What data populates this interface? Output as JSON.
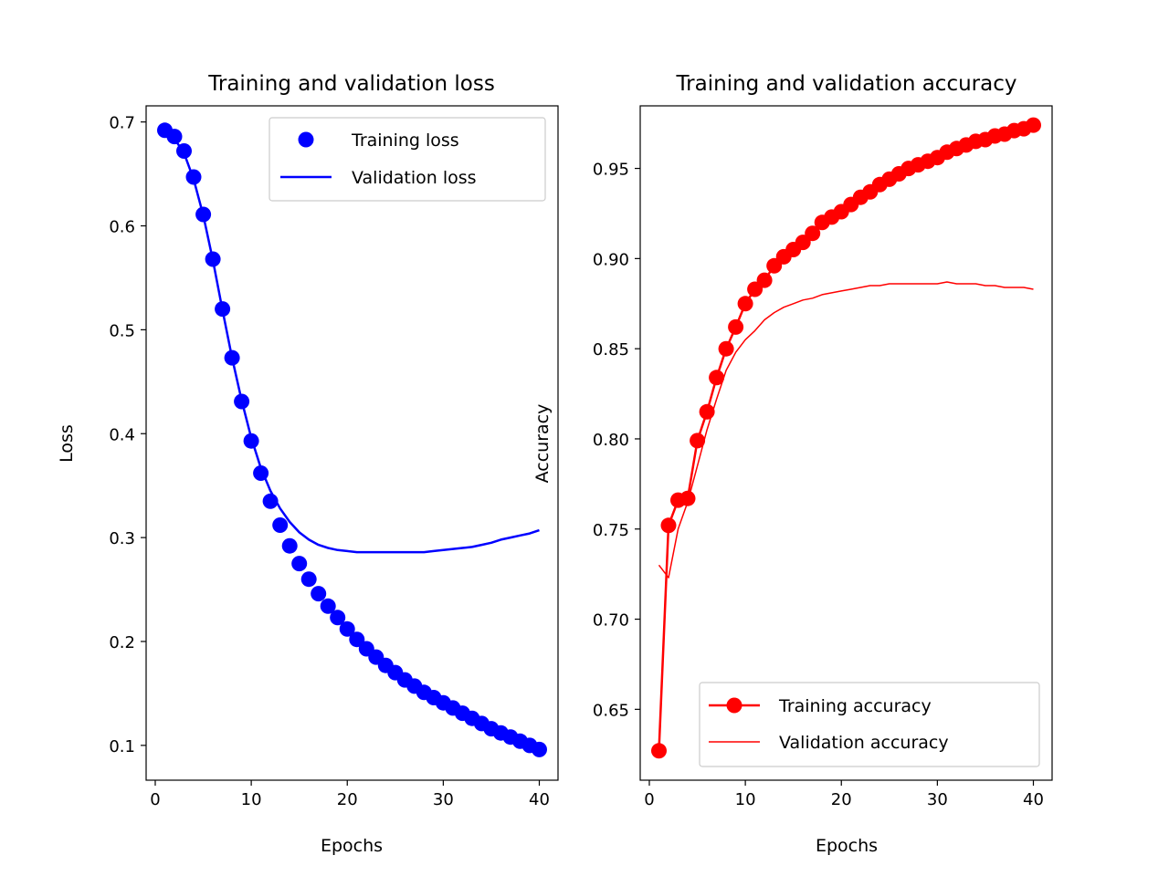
{
  "chart_data": [
    {
      "type": "line",
      "title": "Training and validation loss",
      "xlabel": "Epochs",
      "ylabel": "Loss",
      "xlim": [
        -0.95,
        41.95
      ],
      "ylim": [
        0.0665,
        0.7155
      ],
      "xticks": [
        0,
        10,
        20,
        30,
        40
      ],
      "yticks": [
        0.1,
        0.2,
        0.3,
        0.4,
        0.5,
        0.6,
        0.7
      ],
      "grid": false,
      "legend_position": "top-right",
      "x": [
        1,
        2,
        3,
        4,
        5,
        6,
        7,
        8,
        9,
        10,
        11,
        12,
        13,
        14,
        15,
        16,
        17,
        18,
        19,
        20,
        21,
        22,
        23,
        24,
        25,
        26,
        27,
        28,
        29,
        30,
        31,
        32,
        33,
        34,
        35,
        36,
        37,
        38,
        39,
        40
      ],
      "series": [
        {
          "name": "Training loss",
          "style": "markers",
          "color": "#0000ff",
          "values": [
            0.692,
            0.686,
            0.672,
            0.647,
            0.611,
            0.568,
            0.52,
            0.473,
            0.431,
            0.393,
            0.362,
            0.335,
            0.312,
            0.292,
            0.275,
            0.26,
            0.246,
            0.234,
            0.223,
            0.212,
            0.202,
            0.193,
            0.185,
            0.177,
            0.17,
            0.163,
            0.157,
            0.151,
            0.146,
            0.141,
            0.136,
            0.131,
            0.126,
            0.121,
            0.116,
            0.112,
            0.108,
            0.104,
            0.1,
            0.096
          ]
        },
        {
          "name": "Validation loss",
          "style": "line",
          "color": "#0000ff",
          "values": [
            0.69,
            0.684,
            0.67,
            0.645,
            0.61,
            0.567,
            0.519,
            0.473,
            0.432,
            0.396,
            0.367,
            0.345,
            0.328,
            0.315,
            0.305,
            0.298,
            0.293,
            0.29,
            0.288,
            0.287,
            0.286,
            0.286,
            0.286,
            0.286,
            0.286,
            0.286,
            0.286,
            0.286,
            0.287,
            0.288,
            0.289,
            0.29,
            0.291,
            0.293,
            0.295,
            0.298,
            0.3,
            0.302,
            0.304,
            0.307
          ]
        }
      ]
    },
    {
      "type": "line",
      "title": "Training and validation accuracy",
      "xlabel": "Epochs",
      "ylabel": "Accuracy",
      "xlim": [
        -0.95,
        41.95
      ],
      "ylim": [
        0.6107,
        0.9847
      ],
      "xticks": [
        0,
        10,
        20,
        30,
        40
      ],
      "yticks": [
        0.65,
        0.7,
        0.75,
        0.8,
        0.85,
        0.9,
        0.95
      ],
      "grid": false,
      "legend_position": "bottom-right",
      "x": [
        1,
        2,
        3,
        4,
        5,
        6,
        7,
        8,
        9,
        10,
        11,
        12,
        13,
        14,
        15,
        16,
        17,
        18,
        19,
        20,
        21,
        22,
        23,
        24,
        25,
        26,
        27,
        28,
        29,
        30,
        31,
        32,
        33,
        34,
        35,
        36,
        37,
        38,
        39,
        40
      ],
      "series": [
        {
          "name": "Training accuracy",
          "style": "line-markers",
          "color": "#ff0000",
          "values": [
            0.627,
            0.752,
            0.766,
            0.767,
            0.799,
            0.815,
            0.834,
            0.85,
            0.862,
            0.875,
            0.883,
            0.888,
            0.896,
            0.901,
            0.905,
            0.909,
            0.914,
            0.92,
            0.923,
            0.926,
            0.93,
            0.934,
            0.937,
            0.941,
            0.944,
            0.947,
            0.95,
            0.952,
            0.954,
            0.956,
            0.959,
            0.961,
            0.963,
            0.965,
            0.966,
            0.968,
            0.969,
            0.971,
            0.972,
            0.974
          ]
        },
        {
          "name": "Validation accuracy",
          "style": "line",
          "color": "#ff0000",
          "values": [
            0.73,
            0.723,
            0.75,
            0.765,
            0.785,
            0.805,
            0.822,
            0.838,
            0.848,
            0.855,
            0.86,
            0.866,
            0.87,
            0.873,
            0.875,
            0.877,
            0.878,
            0.88,
            0.881,
            0.882,
            0.883,
            0.884,
            0.885,
            0.885,
            0.886,
            0.886,
            0.886,
            0.886,
            0.886,
            0.886,
            0.887,
            0.886,
            0.886,
            0.886,
            0.885,
            0.885,
            0.884,
            0.884,
            0.884,
            0.883
          ]
        }
      ]
    }
  ]
}
